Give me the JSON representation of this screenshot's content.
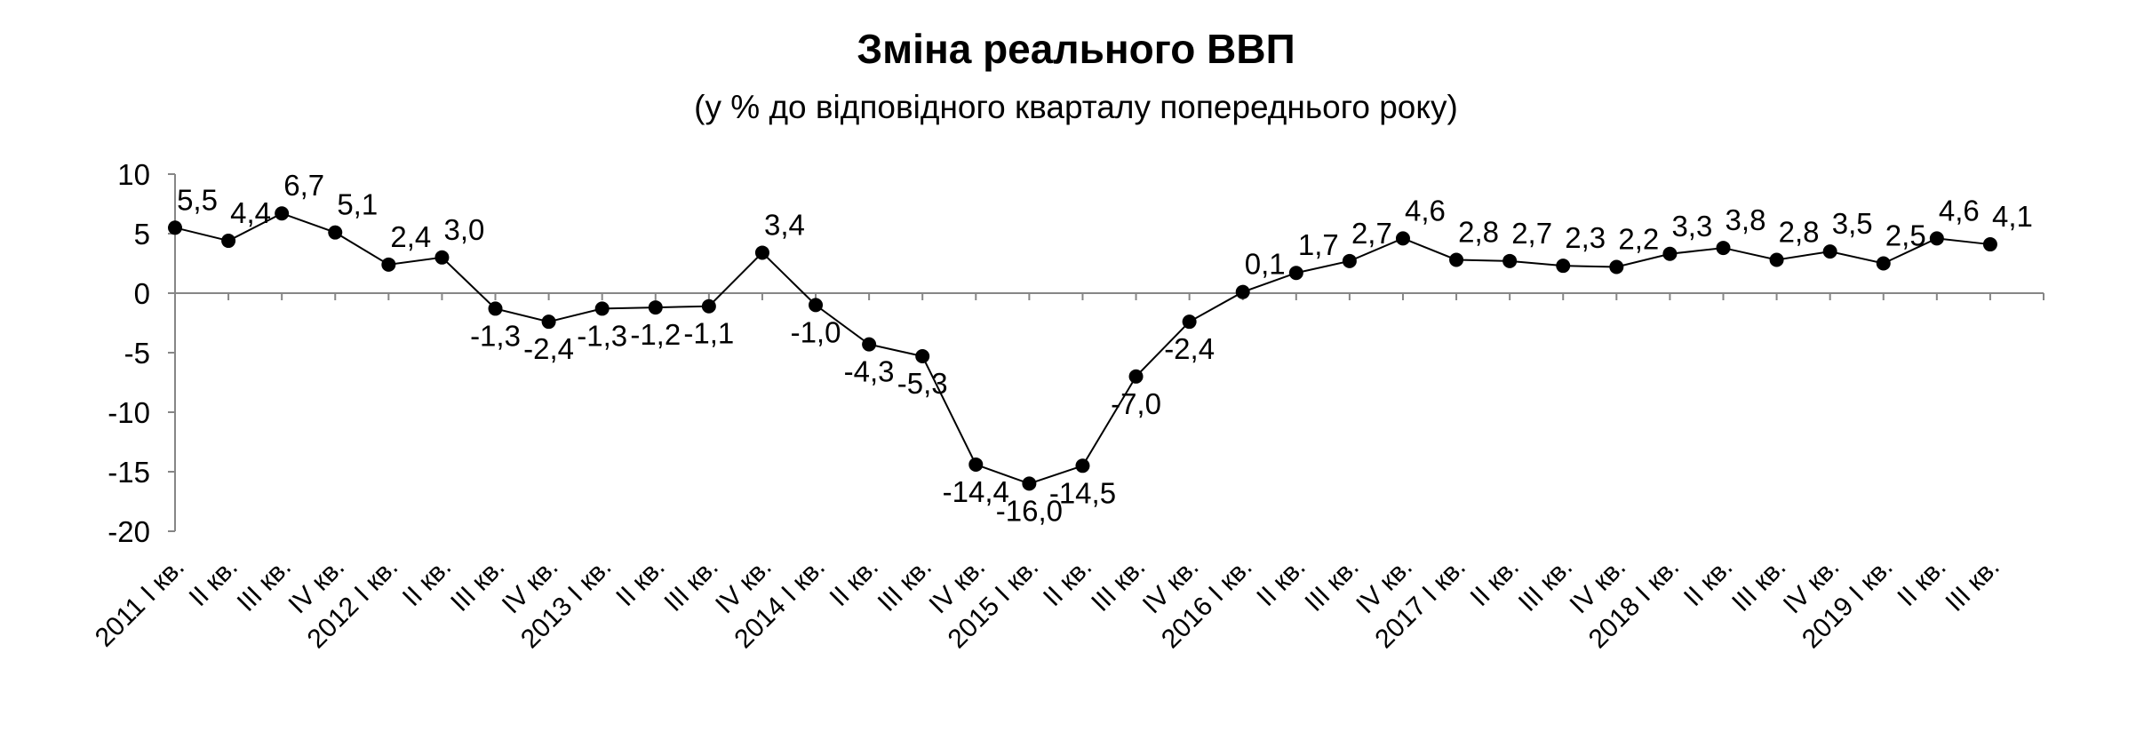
{
  "chart_data": {
    "type": "line",
    "title": "Зміна реального ВВП",
    "subtitle": "(у % до відповідного кварталу попереднього року)",
    "ylim": [
      -20,
      10
    ],
    "yticks": [
      10,
      5,
      0,
      -5,
      -10,
      -15,
      -20
    ],
    "categories": [
      "2011  І кв.",
      "ІІ кв.",
      "ІІІ кв.",
      "IV кв.",
      "2012  І кв.",
      "ІІ кв.",
      "ІІІ кв.",
      "IV кв.",
      "2013  І кв.",
      "ІІ кв.",
      "ІІІ кв.",
      "IV кв.",
      "2014  І кв.",
      "ІІ кв.",
      "ІІІ кв.",
      "IV кв.",
      "2015  І кв.",
      "ІІ кв.",
      "ІІІ кв.",
      "IV кв.",
      "2016  І кв.",
      "ІІ кв.",
      "ІІІ кв.",
      "IV кв.",
      "2017  І кв.",
      "ІІ кв.",
      "ІІІ кв.",
      "IV кв.",
      "2018  І кв.",
      "ІІ кв.",
      "ІІІ кв.",
      "IV кв.",
      "2019  І кв.",
      "ІІ кв.",
      "ІІІ кв."
    ],
    "values": [
      5.5,
      4.4,
      6.7,
      5.1,
      2.4,
      3.0,
      -1.3,
      -2.4,
      -1.3,
      -1.2,
      -1.1,
      3.4,
      -1.0,
      -4.3,
      -5.3,
      -14.4,
      -16.0,
      -14.5,
      -7.0,
      -2.4,
      0.1,
      1.7,
      2.7,
      4.6,
      2.8,
      2.7,
      2.3,
      2.2,
      3.3,
      3.8,
      2.8,
      3.5,
      2.5,
      4.6,
      4.1
    ],
    "data_labels": [
      "5,5",
      "4,4",
      "6,7",
      "5,1",
      "2,4",
      "3,0",
      "-1,3",
      "-2,4",
      "-1,3",
      "-1,2",
      "-1,1",
      "3,4",
      "-1,0",
      "-4,3",
      "-5,3",
      "-14,4",
      "-16,0",
      "-14,5",
      "-7,0",
      "-2,4",
      "0,1",
      "1,7",
      "2,7",
      "4,6",
      "2,8",
      "2,7",
      "2,3",
      "2,2",
      "3,3",
      "3,8",
      "2,8",
      "3,5",
      "2,5",
      "4,6",
      "4,1"
    ],
    "line_color": "#000000",
    "marker": "filled-circle",
    "grid": false
  }
}
